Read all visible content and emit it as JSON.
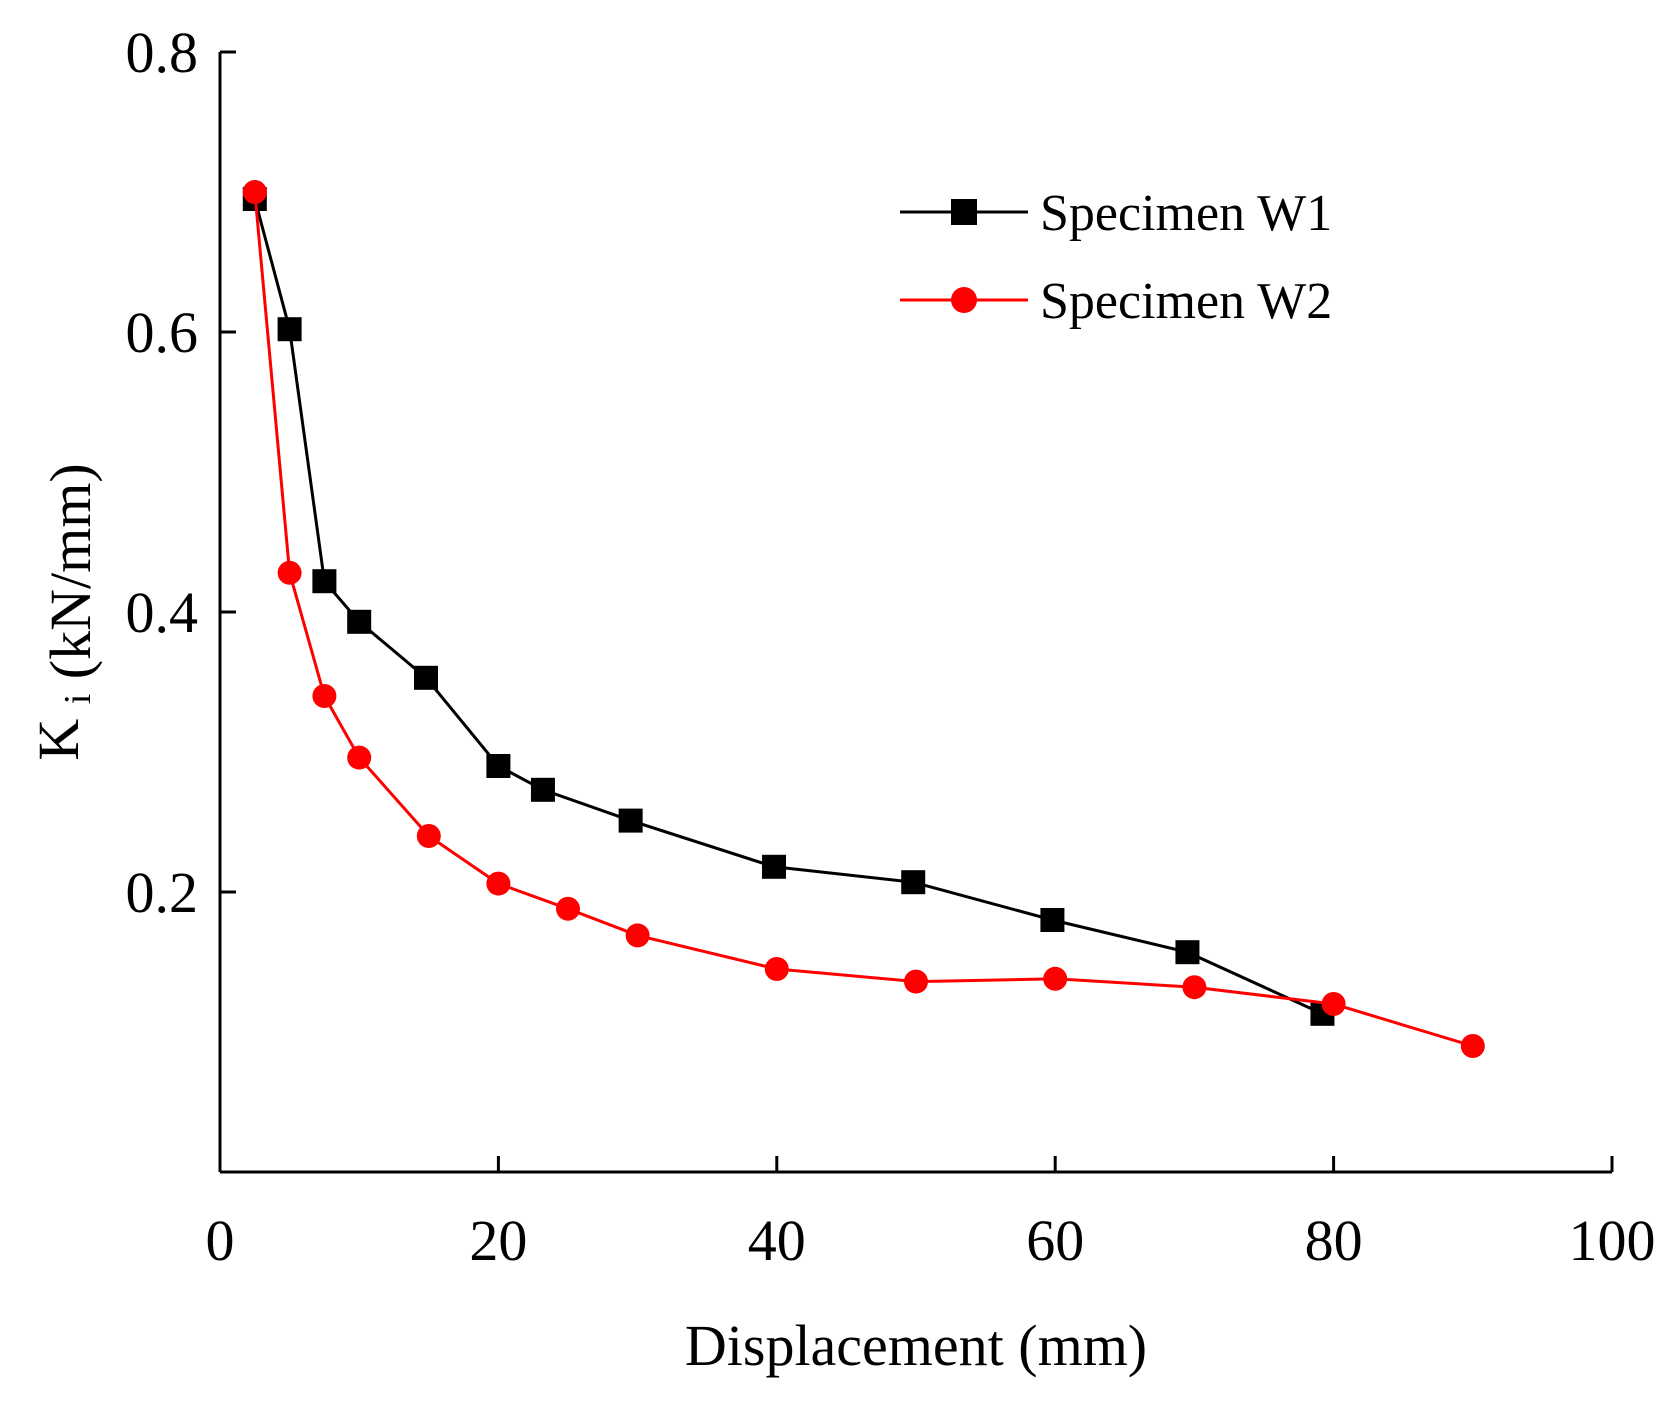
{
  "chart_data": {
    "type": "line",
    "title": "",
    "xlabel": "Displacement (mm)",
    "ylabel": {
      "main": "K",
      "subscript": "i",
      "unit": "(kN/mm)"
    },
    "xlim": [
      0,
      100
    ],
    "ylim": [
      0,
      0.8
    ],
    "x_ticks": [
      0,
      20,
      40,
      60,
      80,
      100
    ],
    "y_ticks": [
      0.2,
      0.4,
      0.6,
      0.8
    ],
    "x_tick_labels": [
      "0",
      "20",
      "40",
      "60",
      "80",
      "100"
    ],
    "y_tick_labels": [
      "0.2",
      "0.4",
      "0.6",
      "0.8"
    ],
    "grid": false,
    "legend_position": "top-right",
    "series": [
      {
        "name": "Specimen W1",
        "color": "#000000",
        "marker": "square",
        "x": [
          2.5,
          5,
          7.5,
          10,
          14.8,
          20,
          23.2,
          29.5,
          39.8,
          49.8,
          59.8,
          69.5,
          79.2
        ],
        "y": [
          0.695,
          0.602,
          0.422,
          0.393,
          0.353,
          0.29,
          0.273,
          0.251,
          0.218,
          0.207,
          0.18,
          0.157,
          0.113
        ]
      },
      {
        "name": "Specimen W2",
        "color": "#ff0000",
        "marker": "circle",
        "x": [
          2.5,
          5,
          7.5,
          10,
          15,
          20,
          25,
          30,
          40,
          50,
          60,
          70,
          80,
          90
        ],
        "y": [
          0.7,
          0.428,
          0.34,
          0.296,
          0.24,
          0.206,
          0.188,
          0.169,
          0.145,
          0.136,
          0.138,
          0.132,
          0.12,
          0.09
        ]
      }
    ]
  }
}
